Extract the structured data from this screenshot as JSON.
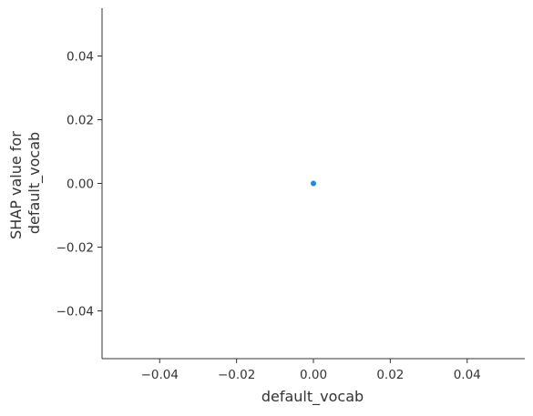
{
  "chart_data": {
    "type": "scatter",
    "title": "",
    "xlabel": "default_vocab",
    "ylabel_lines": [
      "SHAP value for",
      "default_vocab"
    ],
    "xlim": [
      -0.055,
      0.055
    ],
    "ylim": [
      -0.055,
      0.055
    ],
    "xticks": [
      -0.04,
      -0.02,
      0.0,
      0.02,
      0.04
    ],
    "xtick_labels": [
      "−0.04",
      "−0.02",
      "0.00",
      "0.02",
      "0.04"
    ],
    "yticks": [
      -0.04,
      -0.02,
      0.0,
      0.02,
      0.04
    ],
    "ytick_labels": [
      "−0.04",
      "−0.02",
      "0.00",
      "0.02",
      "0.04"
    ],
    "grid": false,
    "points": [
      {
        "x": 0.0,
        "y": 0.0
      }
    ],
    "colors": {
      "point": "#1e88e5",
      "axis": "#333333",
      "text": "#333333"
    }
  }
}
